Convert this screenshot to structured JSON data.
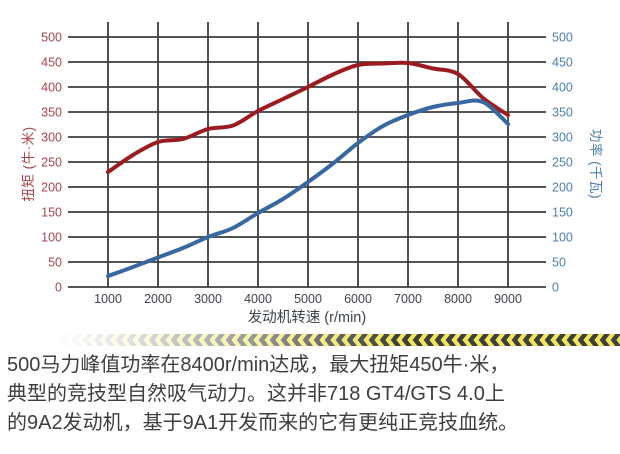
{
  "chart_data": {
    "type": "line",
    "title": "",
    "xlabel": "发动机转速 (r/min)",
    "left_axis_label": "扭矩 (牛·米)",
    "right_axis_label": "功率 (千瓦)",
    "x": [
      1000,
      1500,
      2000,
      2500,
      3000,
      3500,
      4000,
      4500,
      5000,
      5500,
      6000,
      6500,
      7000,
      7500,
      8000,
      8500,
      9000
    ],
    "x_ticks": [
      1000,
      2000,
      3000,
      4000,
      5000,
      6000,
      7000,
      8000,
      9000
    ],
    "y_ticks": [
      0,
      50,
      100,
      150,
      200,
      250,
      300,
      350,
      400,
      450,
      500
    ],
    "xlim": [
      1000,
      9000
    ],
    "ylim_left": [
      0,
      500
    ],
    "ylim_right": [
      0,
      500
    ],
    "grid": true,
    "grid_color": "#3C3C3C",
    "left_tick_color": "#A8444B",
    "right_tick_color": "#4C7FAC",
    "x_tick_color": "#3D434B",
    "series": [
      {
        "name": "扭矩 (牛·米)",
        "axis": "left",
        "color": "#9C1B20",
        "values": [
          230,
          264,
          290,
          296,
          316,
          323,
          352,
          376,
          400,
          425,
          444,
          447,
          448,
          437,
          426,
          378,
          344
        ]
      },
      {
        "name": "功率 (千瓦)",
        "axis": "right",
        "color": "#38689F",
        "values": [
          22,
          40,
          59,
          78,
          100,
          118,
          148,
          176,
          210,
          247,
          288,
          322,
          344,
          360,
          368,
          370,
          326
        ]
      }
    ]
  },
  "divider": {
    "style": "hazard-chevrons-pointing-left",
    "yellow": "#F0E65C",
    "dark": "#3E3E3E"
  },
  "caption": {
    "color": "#3E3E3E",
    "lines": [
      "500马力峰值功率在8400r/min达成，最大扭矩450牛·米，",
      "典型的竞技型自然吸气动力。这并非718 GT4/GTS 4.0上",
      "的9A2发动机，基于9A1开发而来的它有更纯正竞技血统。"
    ]
  }
}
